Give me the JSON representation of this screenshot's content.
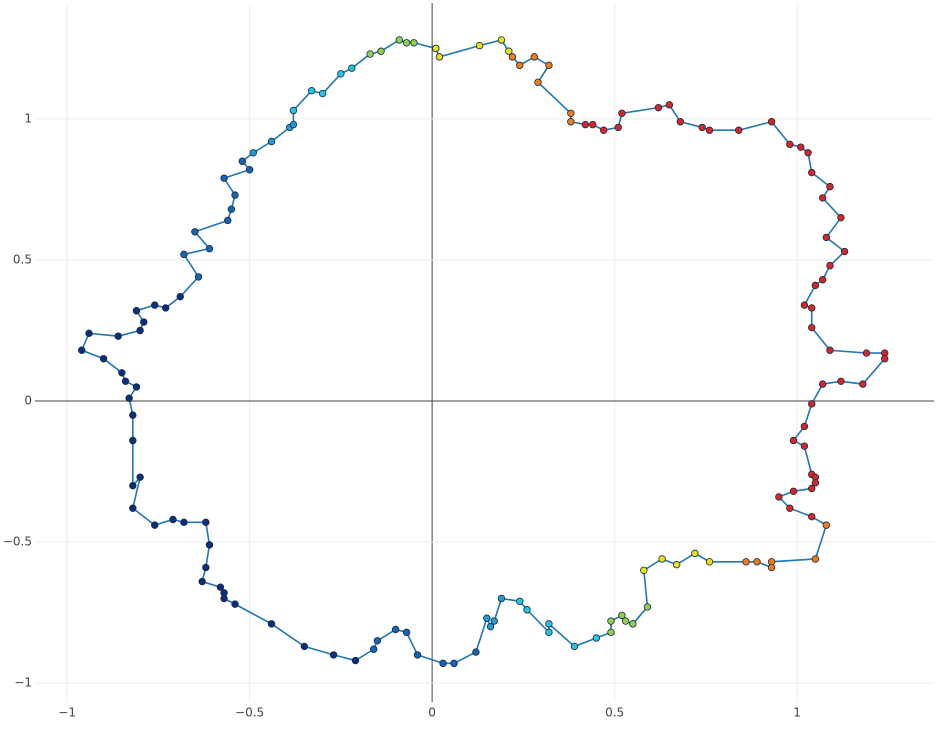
{
  "chart_data": {
    "type": "scatter",
    "mode": "lines+markers",
    "grid": true,
    "zeroline": true,
    "xlim": [
      -1.088,
      1.375
    ],
    "ylim": [
      -1.067,
      1.411
    ],
    "xticks": [
      {
        "value": -1,
        "label": "−1"
      },
      {
        "value": -0.5,
        "label": "−0.5"
      },
      0,
      0.5,
      1
    ],
    "yticks": [
      {
        "value": -1,
        "label": "−1"
      },
      {
        "value": -0.5,
        "label": "−0.5"
      },
      0,
      0.5,
      1
    ],
    "series": [
      {
        "line_color": "#1f77b4",
        "x": [
          0.01,
          0.02,
          0.13,
          0.19,
          0.21,
          0.22,
          0.24,
          0.28,
          0.32,
          0.29,
          0.38,
          0.38,
          0.42,
          0.44,
          0.47,
          0.51,
          0.52,
          0.62,
          0.65,
          0.68,
          0.74,
          0.76,
          0.84,
          0.93,
          0.98,
          1.01,
          1.03,
          1.04,
          1.09,
          1.07,
          1.12,
          1.08,
          1.13,
          1.09,
          1.07,
          1.05,
          1.02,
          1.04,
          1.04,
          1.09,
          1.19,
          1.24,
          1.24,
          1.18,
          1.12,
          1.07,
          1.04,
          1.02,
          0.99,
          1.02,
          1.04,
          1.05,
          1.05,
          1.04,
          0.99,
          0.95,
          0.98,
          1.04,
          1.08,
          1.05,
          0.93,
          0.93,
          0.89,
          0.86,
          0.76,
          0.72,
          0.67,
          0.63,
          0.58,
          0.59,
          0.55,
          0.53,
          0.52,
          0.49,
          0.49,
          0.45,
          0.39,
          0.32,
          0.32,
          0.26,
          0.24,
          0.19,
          0.17,
          0.16,
          0.15,
          0.12,
          0.06,
          0.03,
          -0.04,
          -0.07,
          -0.1,
          -0.15,
          -0.16,
          -0.21,
          -0.27,
          -0.35,
          -0.44,
          -0.54,
          -0.57,
          -0.57,
          -0.58,
          -0.63,
          -0.62,
          -0.61,
          -0.62,
          -0.68,
          -0.71,
          -0.76,
          -0.82,
          -0.8,
          -0.82,
          -0.82,
          -0.82,
          -0.83,
          -0.81,
          -0.84,
          -0.85,
          -0.9,
          -0.96,
          -0.94,
          -0.86,
          -0.8,
          -0.79,
          -0.81,
          -0.76,
          -0.73,
          -0.69,
          -0.64,
          -0.68,
          -0.61,
          -0.65,
          -0.56,
          -0.55,
          -0.54,
          -0.57,
          -0.5,
          -0.52,
          -0.49,
          -0.44,
          -0.39,
          -0.38,
          -0.38,
          -0.33,
          -0.3,
          -0.25,
          -0.22,
          -0.17,
          -0.14,
          -0.09,
          -0.07,
          -0.05,
          0.01
        ],
        "values": [
          1.25,
          1.22,
          1.26,
          1.28,
          1.24,
          1.22,
          1.19,
          1.22,
          1.19,
          1.13,
          1.02,
          0.99,
          0.98,
          0.98,
          0.96,
          0.97,
          1.02,
          1.04,
          1.05,
          0.99,
          0.97,
          0.96,
          0.96,
          0.99,
          0.91,
          0.9,
          0.88,
          0.81,
          0.76,
          0.72,
          0.65,
          0.58,
          0.53,
          0.48,
          0.43,
          0.41,
          0.34,
          0.33,
          0.26,
          0.18,
          0.17,
          0.17,
          0.15,
          0.06,
          0.07,
          0.06,
          -0.01,
          -0.09,
          -0.14,
          -0.16,
          -0.26,
          -0.27,
          -0.29,
          -0.31,
          -0.32,
          -0.34,
          -0.38,
          -0.41,
          -0.44,
          -0.56,
          -0.57,
          -0.59,
          -0.57,
          -0.57,
          -0.57,
          -0.54,
          -0.58,
          -0.56,
          -0.6,
          -0.73,
          -0.79,
          -0.78,
          -0.76,
          -0.78,
          -0.82,
          -0.84,
          -0.87,
          -0.79,
          -0.82,
          -0.74,
          -0.71,
          -0.7,
          -0.78,
          -0.8,
          -0.77,
          -0.89,
          -0.93,
          -0.93,
          -0.9,
          -0.82,
          -0.81,
          -0.85,
          -0.88,
          -0.92,
          -0.9,
          -0.87,
          -0.79,
          -0.72,
          -0.7,
          -0.68,
          -0.66,
          -0.64,
          -0.59,
          -0.51,
          -0.43,
          -0.43,
          -0.42,
          -0.44,
          -0.38,
          -0.27,
          -0.3,
          -0.14,
          -0.05,
          0.01,
          0.05,
          0.07,
          0.1,
          0.15,
          0.18,
          0.24,
          0.23,
          0.25,
          0.28,
          0.32,
          0.34,
          0.33,
          0.37,
          0.44,
          0.52,
          0.54,
          0.6,
          0.64,
          0.68,
          0.73,
          0.79,
          0.82,
          0.85,
          0.88,
          0.92,
          0.97,
          0.98,
          1.03,
          1.1,
          1.09,
          1.16,
          1.18,
          1.23,
          1.24,
          1.28,
          1.27,
          1.27,
          1.25
        ],
        "marker_colors": [
          "#e8e21a",
          "#e8e21a",
          "#e8e21a",
          "#e8e21a",
          "#e8e21a",
          "#f07d1a",
          "#f07d1a",
          "#f07d1a",
          "#f07d1a",
          "#f07d1a",
          "#f07d1a",
          "#f07d1a",
          "#d62728",
          "#d62728",
          "#d62728",
          "#d62728",
          "#d62728",
          "#d62728",
          "#d62728",
          "#d62728",
          "#d62728",
          "#d62728",
          "#d62728",
          "#d62728",
          "#d62728",
          "#d62728",
          "#d62728",
          "#d62728",
          "#d62728",
          "#d62728",
          "#d62728",
          "#d62728",
          "#d62728",
          "#d62728",
          "#d62728",
          "#d62728",
          "#d62728",
          "#d62728",
          "#d62728",
          "#d62728",
          "#d62728",
          "#d62728",
          "#d62728",
          "#d62728",
          "#d62728",
          "#d62728",
          "#d62728",
          "#d62728",
          "#d62728",
          "#d62728",
          "#d62728",
          "#d62728",
          "#d62728",
          "#d62728",
          "#d62728",
          "#d62728",
          "#d62728",
          "#d62728",
          "#f07d1a",
          "#f07d1a",
          "#f07d1a",
          "#f07d1a",
          "#f07d1a",
          "#f07d1a",
          "#e8e21a",
          "#e8e21a",
          "#e8e21a",
          "#e8e21a",
          "#e8e21a",
          "#8fd14f",
          "#8fd14f",
          "#8fd14f",
          "#8fd14f",
          "#8fd14f",
          "#8fd14f",
          "#22c7dd",
          "#22c7dd",
          "#22c7dd",
          "#22c7dd",
          "#22c7dd",
          "#22c7dd",
          "#1f9bd6",
          "#1f9bd6",
          "#1f9bd6",
          "#1f9bd6",
          "#1763b4",
          "#1763b4",
          "#1763b4",
          "#1763b4",
          "#1763b4",
          "#1763b4",
          "#1763b4",
          "#1763b4",
          "#0a2f7e",
          "#0a2f7e",
          "#0a2f7e",
          "#0a2f7e",
          "#0a2f7e",
          "#0a2f7e",
          "#0a2f7e",
          "#0a2f7e",
          "#0a2f7e",
          "#0a2f7e",
          "#0a2f7e",
          "#0a2f7e",
          "#0a2f7e",
          "#0a2f7e",
          "#0a2f7e",
          "#0a2f7e",
          "#0a2f7e",
          "#0a2f7e",
          "#0a2f7e",
          "#0a2f7e",
          "#0a2f7e",
          "#0a2f7e",
          "#0a2f7e",
          "#0a2f7e",
          "#0a2f7e",
          "#0a2f7e",
          "#0a2f7e",
          "#0a2f7e",
          "#0a2f7e",
          "#0a2f7e",
          "#0a2f7e",
          "#0a2f7e",
          "#0a2f7e",
          "#0a2f7e",
          "#1763b4",
          "#1763b4",
          "#1763b4",
          "#1763b4",
          "#1763b4",
          "#1763b4",
          "#1763b4",
          "#1763b4",
          "#1763b4",
          "#1763b4",
          "#1f9bd6",
          "#1f9bd6",
          "#1f9bd6",
          "#1f9bd6",
          "#22c7dd",
          "#22c7dd",
          "#22c7dd",
          "#22c7dd",
          "#22c7dd",
          "#8fd14f",
          "#8fd14f",
          "#8fd14f",
          "#8fd14f",
          "#8fd14f",
          "#e8e21a"
        ]
      }
    ]
  }
}
